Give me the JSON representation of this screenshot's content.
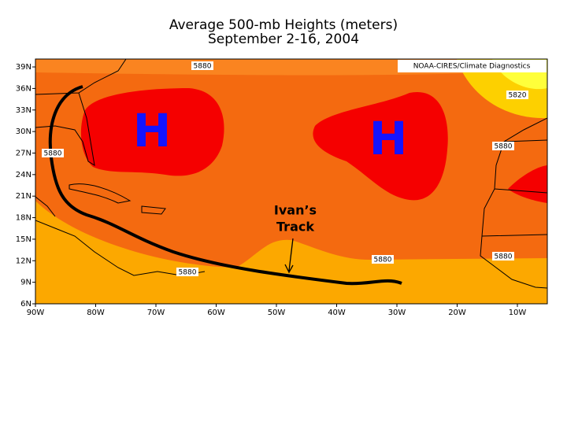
{
  "title": {
    "line1": "Average 500-mb Heights (meters)",
    "line2": "September 2-16, 2004"
  },
  "credit": "NOAA-CIRES/Climate Diagnostics",
  "axes": {
    "lat_ticks": [
      {
        "value": 6,
        "label": "6N"
      },
      {
        "value": 9,
        "label": "9N"
      },
      {
        "value": 12,
        "label": "12N"
      },
      {
        "value": 15,
        "label": "15N"
      },
      {
        "value": 18,
        "label": "18N"
      },
      {
        "value": 21,
        "label": "21N"
      },
      {
        "value": 24,
        "label": "24N"
      },
      {
        "value": 27,
        "label": "27N"
      },
      {
        "value": 30,
        "label": "30N"
      },
      {
        "value": 33,
        "label": "33N"
      },
      {
        "value": 36,
        "label": "36N"
      },
      {
        "value": 39,
        "label": "39N"
      }
    ],
    "lon_ticks": [
      {
        "value": -90,
        "label": "90W"
      },
      {
        "value": -80,
        "label": "80W"
      },
      {
        "value": -70,
        "label": "70W"
      },
      {
        "value": -60,
        "label": "60W"
      },
      {
        "value": -50,
        "label": "50W"
      },
      {
        "value": -40,
        "label": "40W"
      },
      {
        "value": -30,
        "label": "30W"
      },
      {
        "value": -20,
        "label": "20W"
      },
      {
        "value": -10,
        "label": "10W"
      }
    ]
  },
  "contour_labels": [
    "5880",
    "5880",
    "5880",
    "5880",
    "5880",
    "5880",
    "5820"
  ],
  "highs": [
    "H",
    "H"
  ],
  "annotation": {
    "line1": "Ivan’s",
    "line2": "Track"
  }
}
